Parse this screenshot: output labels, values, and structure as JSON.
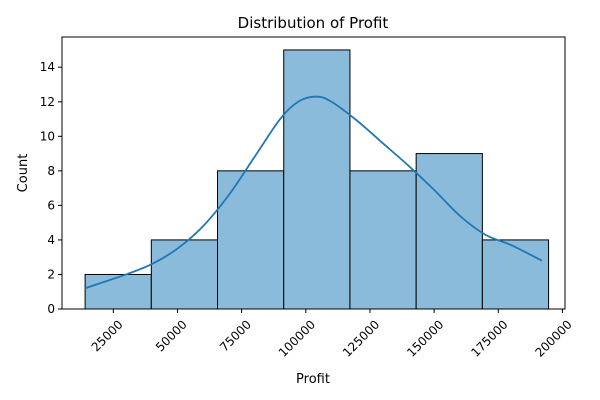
{
  "chart_data": {
    "type": "bar",
    "title": "Distribution of Profit",
    "xlabel": "Profit",
    "ylabel": "Count",
    "xlim": [
      5000,
      201000
    ],
    "ylim": [
      0,
      15.75
    ],
    "grid": false,
    "bins": [
      {
        "start": 14000,
        "end": 39800,
        "count": 2
      },
      {
        "start": 39800,
        "end": 65600,
        "count": 4
      },
      {
        "start": 65600,
        "end": 91400,
        "count": 8
      },
      {
        "start": 91400,
        "end": 117200,
        "count": 15
      },
      {
        "start": 117200,
        "end": 143000,
        "count": 8
      },
      {
        "start": 143000,
        "end": 168800,
        "count": 9
      },
      {
        "start": 168800,
        "end": 194600,
        "count": 4
      }
    ],
    "kde": {
      "x": [
        14000,
        20000,
        30000,
        40000,
        50000,
        60000,
        70000,
        80000,
        90000,
        97000,
        104000,
        110000,
        120000,
        130000,
        140000,
        150000,
        160000,
        170000,
        180000,
        192000
      ],
      "y": [
        1.2,
        1.5,
        2.0,
        2.6,
        3.5,
        4.8,
        6.6,
        8.8,
        11.0,
        12.0,
        12.3,
        12.0,
        10.9,
        9.6,
        8.3,
        6.9,
        5.4,
        4.3,
        3.7,
        2.8
      ]
    },
    "xticks": [
      25000,
      50000,
      75000,
      100000,
      125000,
      150000,
      175000,
      200000
    ],
    "xtick_labels": [
      "25000",
      "50000",
      "75000",
      "100000",
      "125000",
      "150000",
      "175000",
      "200000"
    ],
    "yticks": [
      0,
      2,
      4,
      6,
      8,
      10,
      12,
      14
    ],
    "ytick_labels": [
      "0",
      "2",
      "4",
      "6",
      "8",
      "10",
      "12",
      "14"
    ],
    "colors": {
      "bar_fill": "#8bbbdb",
      "bar_edge": "#000000",
      "kde_line": "#1f77b4"
    }
  }
}
